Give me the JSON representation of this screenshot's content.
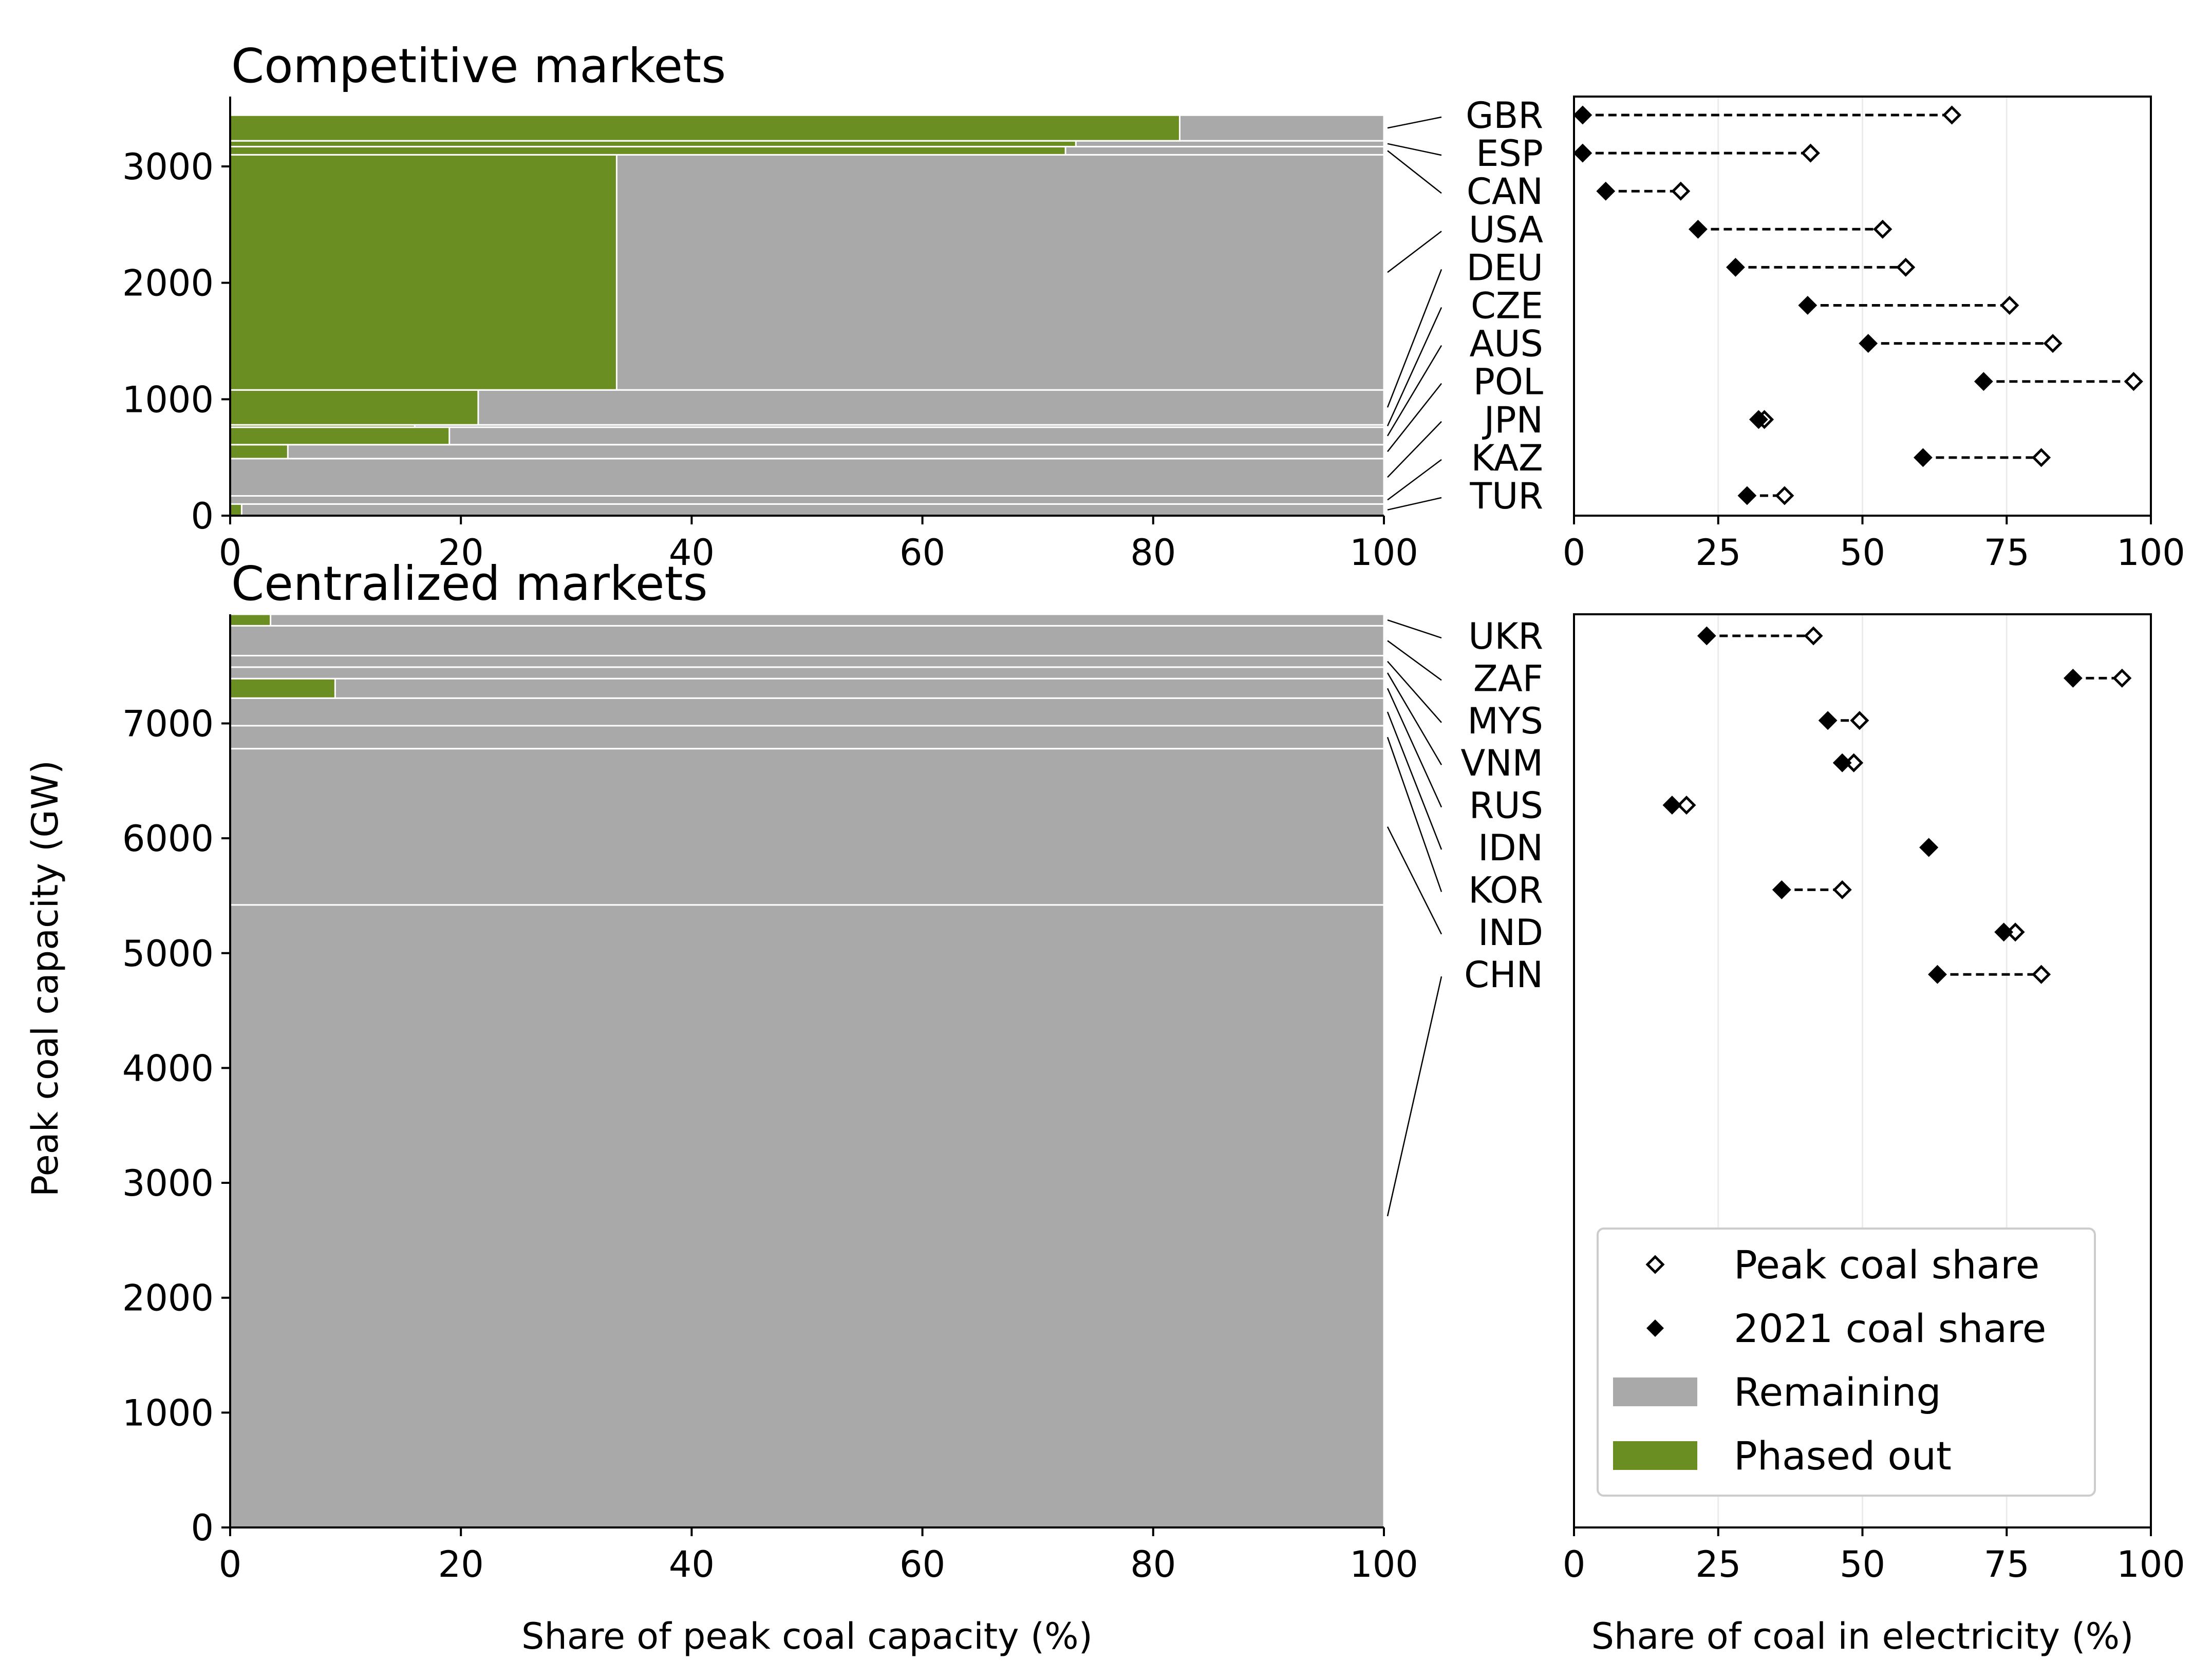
{
  "chart_data": [
    {
      "type": "bar",
      "panel": "competitive-mosaic",
      "title": "Competitive markets",
      "xlabel": "",
      "ylabel": "",
      "xlim": [
        0,
        100
      ],
      "ylim": [
        0,
        3600
      ],
      "xticks": [
        "0",
        "20",
        "40",
        "60",
        "80",
        "100"
      ],
      "yticks": [
        "0",
        "1000",
        "2000",
        "3000"
      ],
      "countries": [
        {
          "code": "TUR",
          "capacity": 100,
          "phased_out": 1
        },
        {
          "code": "KAZ",
          "capacity": 70,
          "phased_out": 0
        },
        {
          "code": "JPN",
          "capacity": 320,
          "phased_out": 0
        },
        {
          "code": "POL",
          "capacity": 120,
          "phased_out": 5
        },
        {
          "code": "AUS",
          "capacity": 150,
          "phased_out": 19
        },
        {
          "code": "CZE",
          "capacity": 20,
          "phased_out": 16
        },
        {
          "code": "DEU",
          "capacity": 300,
          "phased_out": 21.5
        },
        {
          "code": "USA",
          "capacity": 2020,
          "phased_out": 33.5
        },
        {
          "code": "CAN",
          "capacity": 70,
          "phased_out": 72.4
        },
        {
          "code": "ESP",
          "capacity": 50,
          "phased_out": 73.3
        },
        {
          "code": "GBR",
          "capacity": 220,
          "phased_out": 82.3
        }
      ]
    },
    {
      "type": "bar",
      "panel": "centralized-mosaic",
      "title": "Centralized markets",
      "xlabel": "Share of peak coal capacity (%)",
      "ylabel": "Peak coal capacity (GW)",
      "xlim": [
        0,
        100
      ],
      "ylim": [
        0,
        7950
      ],
      "xticks": [
        "0",
        "20",
        "40",
        "60",
        "80",
        "100"
      ],
      "yticks": [
        "0",
        "1000",
        "2000",
        "3000",
        "4000",
        "5000",
        "6000",
        "7000"
      ],
      "countries": [
        {
          "code": "CHN",
          "capacity": 5420,
          "phased_out": 0
        },
        {
          "code": "IND",
          "capacity": 1360,
          "phased_out": 0
        },
        {
          "code": "KOR",
          "capacity": 200,
          "phased_out": 0
        },
        {
          "code": "IDN",
          "capacity": 240,
          "phased_out": 0
        },
        {
          "code": "RUS",
          "capacity": 170,
          "phased_out": 9.1
        },
        {
          "code": "VNM",
          "capacity": 100,
          "phased_out": 0
        },
        {
          "code": "MYS",
          "capacity": 100,
          "phased_out": 0
        },
        {
          "code": "ZAF",
          "capacity": 260,
          "phased_out": 0
        },
        {
          "code": "UKR",
          "capacity": 100,
          "phased_out": 3.5
        }
      ]
    },
    {
      "type": "scatter",
      "panel": "competitive-shares",
      "xlabel": "",
      "ylabel": "",
      "xlim": [
        0,
        100
      ],
      "xticks": [
        "0",
        "25",
        "50",
        "75",
        "100"
      ],
      "categories": [
        "GBR",
        "ESP",
        "CAN",
        "USA",
        "DEU",
        "CZE",
        "AUS",
        "POL",
        "JPN",
        "KAZ",
        "TUR"
      ],
      "series": [
        {
          "name": "Peak coal share",
          "values": [
            65.5,
            41,
            18.5,
            53.5,
            57.5,
            75.5,
            83,
            97,
            33,
            81,
            36.5
          ]
        },
        {
          "name": "2021 coal share",
          "values": [
            1.5,
            1.5,
            5.5,
            21.5,
            28,
            40.5,
            51,
            71,
            32,
            60.5,
            30
          ]
        }
      ]
    },
    {
      "type": "scatter",
      "panel": "centralized-shares",
      "xlabel": "Share of coal in electricity (%)",
      "ylabel": "",
      "xlim": [
        0,
        100
      ],
      "xticks": [
        "0",
        "25",
        "50",
        "75",
        "100"
      ],
      "categories": [
        "UKR",
        "ZAF",
        "MYS",
        "VNM",
        "RUS",
        "IDN",
        "KOR",
        "IND",
        "CHN"
      ],
      "series": [
        {
          "name": "Peak coal share",
          "values": [
            41.5,
            95,
            49.5,
            48.5,
            19.5,
            61.5,
            46.5,
            76.5,
            81
          ]
        },
        {
          "name": "2021 coal share",
          "values": [
            23,
            86.5,
            44,
            46.5,
            17,
            61.5,
            36,
            74.5,
            63
          ]
        }
      ]
    }
  ],
  "legend": {
    "placement": "lower-right",
    "items": [
      {
        "label": "Peak coal share",
        "marker": "open-diamond"
      },
      {
        "label": "2021 coal share",
        "marker": "filled-diamond"
      },
      {
        "label": "Remaining",
        "swatch": "#a9a9a9"
      },
      {
        "label": "Phased out",
        "swatch": "#6b8e23"
      }
    ]
  },
  "colors": {
    "remaining": "#a9a9a9",
    "phased_out": "#6b8e23",
    "grid": "#ebebeb"
  }
}
